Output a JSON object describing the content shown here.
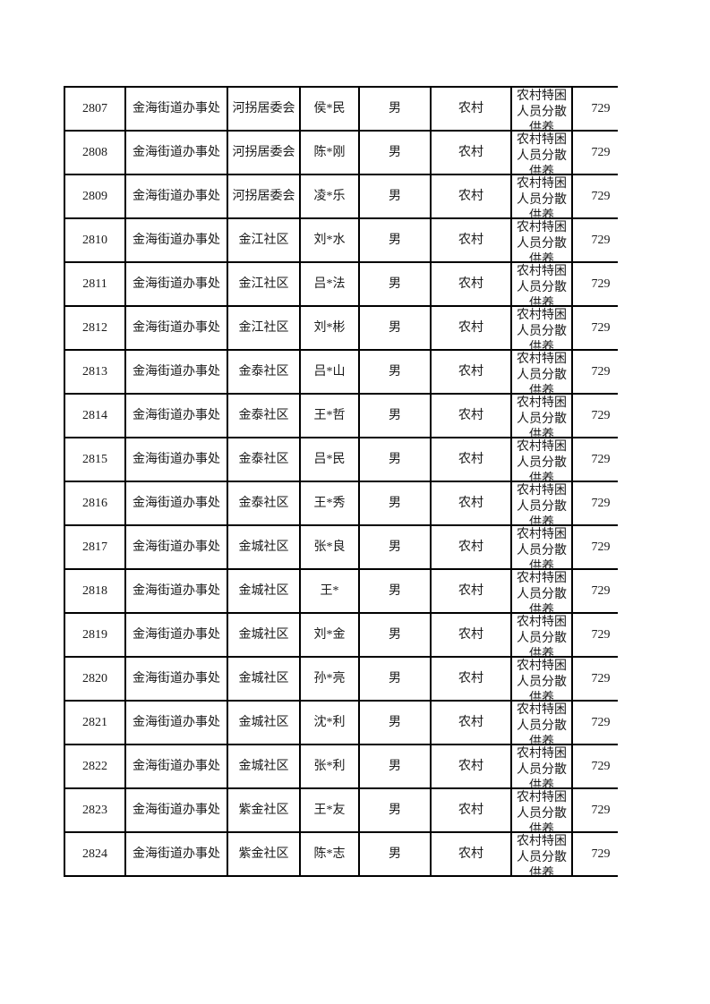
{
  "page": {
    "kind": "document-table-page",
    "background_color": "#ffffff"
  },
  "colors": {
    "border": "#000000",
    "text": "#1a1a1a",
    "cell_background": "#ffffff"
  },
  "table": {
    "field_order": [
      "id",
      "office",
      "community",
      "name",
      "gender",
      "residence",
      "category",
      "amount"
    ],
    "rows": [
      {
        "id": "2807",
        "office": "金海街道办事处",
        "community": "河拐居委会",
        "name": "侯*民",
        "gender": "男",
        "residence": "农村",
        "category": "农村特困人员分散供养",
        "amount": "729"
      },
      {
        "id": "2808",
        "office": "金海街道办事处",
        "community": "河拐居委会",
        "name": "陈*刚",
        "gender": "男",
        "residence": "农村",
        "category": "农村特困人员分散供养",
        "amount": "729"
      },
      {
        "id": "2809",
        "office": "金海街道办事处",
        "community": "河拐居委会",
        "name": "凌*乐",
        "gender": "男",
        "residence": "农村",
        "category": "农村特困人员分散供养",
        "amount": "729"
      },
      {
        "id": "2810",
        "office": "金海街道办事处",
        "community": "金江社区",
        "name": "刘*水",
        "gender": "男",
        "residence": "农村",
        "category": "农村特困人员分散供养",
        "amount": "729"
      },
      {
        "id": "2811",
        "office": "金海街道办事处",
        "community": "金江社区",
        "name": "吕*法",
        "gender": "男",
        "residence": "农村",
        "category": "农村特困人员分散供养",
        "amount": "729"
      },
      {
        "id": "2812",
        "office": "金海街道办事处",
        "community": "金江社区",
        "name": "刘*彬",
        "gender": "男",
        "residence": "农村",
        "category": "农村特困人员分散供养",
        "amount": "729"
      },
      {
        "id": "2813",
        "office": "金海街道办事处",
        "community": "金泰社区",
        "name": "吕*山",
        "gender": "男",
        "residence": "农村",
        "category": "农村特困人员分散供养",
        "amount": "729"
      },
      {
        "id": "2814",
        "office": "金海街道办事处",
        "community": "金泰社区",
        "name": "王*哲",
        "gender": "男",
        "residence": "农村",
        "category": "农村特困人员分散供养",
        "amount": "729"
      },
      {
        "id": "2815",
        "office": "金海街道办事处",
        "community": "金泰社区",
        "name": "吕*民",
        "gender": "男",
        "residence": "农村",
        "category": "农村特困人员分散供养",
        "amount": "729"
      },
      {
        "id": "2816",
        "office": "金海街道办事处",
        "community": "金泰社区",
        "name": "王*秀",
        "gender": "男",
        "residence": "农村",
        "category": "农村特困人员分散供养",
        "amount": "729"
      },
      {
        "id": "2817",
        "office": "金海街道办事处",
        "community": "金城社区",
        "name": "张*良",
        "gender": "男",
        "residence": "农村",
        "category": "农村特困人员分散供养",
        "amount": "729"
      },
      {
        "id": "2818",
        "office": "金海街道办事处",
        "community": "金城社区",
        "name": "王*",
        "gender": "男",
        "residence": "农村",
        "category": "农村特困人员分散供养",
        "amount": "729"
      },
      {
        "id": "2819",
        "office": "金海街道办事处",
        "community": "金城社区",
        "name": "刘*金",
        "gender": "男",
        "residence": "农村",
        "category": "农村特困人员分散供养",
        "amount": "729"
      },
      {
        "id": "2820",
        "office": "金海街道办事处",
        "community": "金城社区",
        "name": "孙*亮",
        "gender": "男",
        "residence": "农村",
        "category": "农村特困人员分散供养",
        "amount": "729"
      },
      {
        "id": "2821",
        "office": "金海街道办事处",
        "community": "金城社区",
        "name": "沈*利",
        "gender": "男",
        "residence": "农村",
        "category": "农村特困人员分散供养",
        "amount": "729"
      },
      {
        "id": "2822",
        "office": "金海街道办事处",
        "community": "金城社区",
        "name": "张*利",
        "gender": "男",
        "residence": "农村",
        "category": "农村特困人员分散供养",
        "amount": "729"
      },
      {
        "id": "2823",
        "office": "金海街道办事处",
        "community": "紫金社区",
        "name": "王*友",
        "gender": "男",
        "residence": "农村",
        "category": "农村特困人员分散供养",
        "amount": "729"
      },
      {
        "id": "2824",
        "office": "金海街道办事处",
        "community": "紫金社区",
        "name": "陈*志",
        "gender": "男",
        "residence": "农村",
        "category": "农村特困人员分散供养",
        "amount": "729"
      }
    ]
  }
}
